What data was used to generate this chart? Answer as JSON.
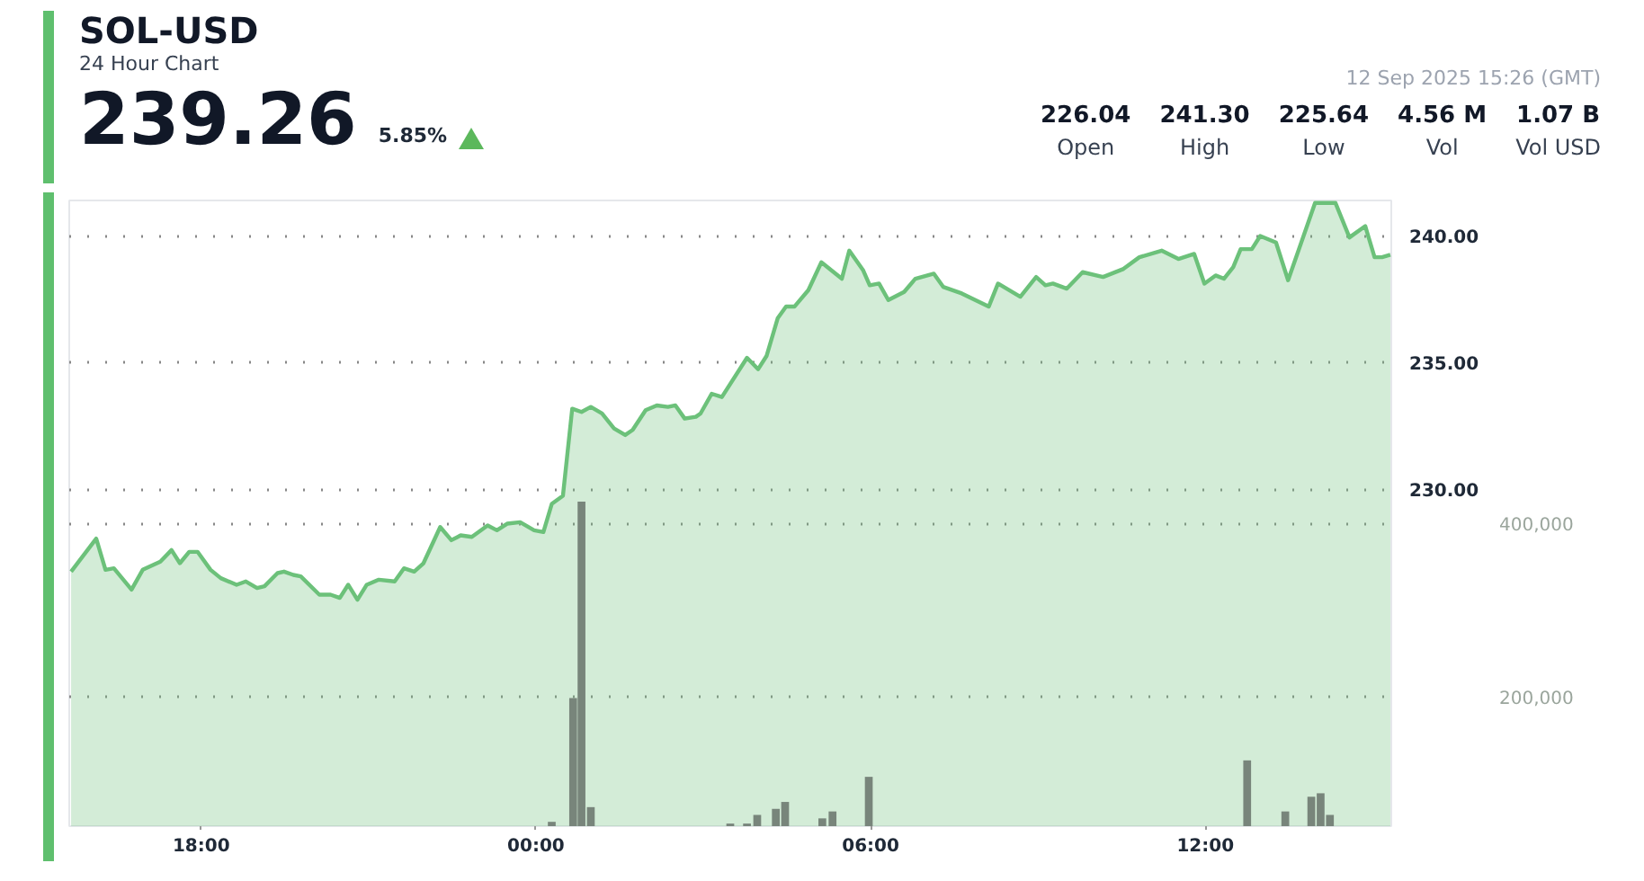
{
  "chart_data": {
    "type": "area",
    "title": "SOL-USD",
    "subtitle": "24 Hour Chart",
    "annotations": [
      "239.26",
      "5.85%",
      "12 Sep 2025 15:26 (GMT)",
      "226.04",
      "Open",
      "241.30",
      "High",
      "225.64",
      "Low",
      "4.56 M",
      "Vol",
      "1.07 B",
      "Vol USD"
    ],
    "xlim": [
      "2025-09-11T15:38",
      "2025-09-12T15:20"
    ],
    "xticks": [
      {
        "value": "2025-09-11T18:00",
        "label": "18:00"
      },
      {
        "value": "2025-09-12T00:00",
        "label": "00:00"
      },
      {
        "value": "2025-09-12T06:00",
        "label": "06:00"
      },
      {
        "value": "2025-09-12T12:00",
        "label": "12:00"
      }
    ],
    "ylim": [
      216.7,
      241.4
    ],
    "yticks": [
      {
        "value": 230,
        "label": "230.00"
      },
      {
        "value": 235,
        "label": "235.00"
      },
      {
        "value": 240,
        "label": "240.00"
      }
    ],
    "y2lim": [
      50000,
      773000
    ],
    "y2ticks": [
      {
        "value": 200000,
        "label": "200,000"
      },
      {
        "value": 400000,
        "label": "400,000"
      }
    ],
    "grid": "y",
    "series": [
      {
        "color": "#6cc17a",
        "x": [
          "2025-09-11T15:40",
          "2025-09-11T16:07",
          "2025-09-11T16:17",
          "2025-09-11T16:26",
          "2025-09-11T16:45",
          "2025-09-11T16:57",
          "2025-09-11T17:16",
          "2025-09-11T17:28",
          "2025-09-11T17:37",
          "2025-09-11T17:47",
          "2025-09-11T17:56",
          "2025-09-11T18:10",
          "2025-09-11T18:21",
          "2025-09-11T18:38",
          "2025-09-11T18:48",
          "2025-09-11T19:00",
          "2025-09-11T19:08",
          "2025-09-11T19:22",
          "2025-09-11T19:29",
          "2025-09-11T19:39",
          "2025-09-11T19:47",
          "2025-09-11T20:07",
          "2025-09-11T20:19",
          "2025-09-11T20:29",
          "2025-09-11T20:38",
          "2025-09-11T20:48",
          "2025-09-11T20:58",
          "2025-09-11T21:11",
          "2025-09-11T21:28",
          "2025-09-11T21:38",
          "2025-09-11T21:49",
          "2025-09-11T21:59",
          "2025-09-11T22:17",
          "2025-09-11T22:29",
          "2025-09-11T22:39",
          "2025-09-11T22:51",
          "2025-09-11T23:08",
          "2025-09-11T23:18",
          "2025-09-11T23:29",
          "2025-09-11T23:43",
          "2025-09-11T23:58",
          "2025-09-12T00:08",
          "2025-09-12T00:17",
          "2025-09-12T00:29",
          "2025-09-12T00:39",
          "2025-09-12T00:49",
          "2025-09-12T00:59",
          "2025-09-12T01:11",
          "2025-09-12T01:24",
          "2025-09-12T01:36",
          "2025-09-12T01:44",
          "2025-09-12T01:58",
          "2025-09-12T02:10",
          "2025-09-12T02:22",
          "2025-09-12T02:30",
          "2025-09-12T02:40",
          "2025-09-12T02:52",
          "2025-09-12T02:57",
          "2025-09-12T03:09",
          "2025-09-12T03:20",
          "2025-09-12T03:47",
          "2025-09-12T03:59",
          "2025-09-12T04:08",
          "2025-09-12T04:20",
          "2025-09-12T04:29",
          "2025-09-12T04:38",
          "2025-09-12T04:53",
          "2025-09-12T05:07",
          "2025-09-12T05:29",
          "2025-09-12T05:37",
          "2025-09-12T05:52",
          "2025-09-12T05:59",
          "2025-09-12T06:09",
          "2025-09-12T06:19",
          "2025-09-12T06:36",
          "2025-09-12T06:48",
          "2025-09-12T07:08",
          "2025-09-12T07:18",
          "2025-09-12T07:38",
          "2025-09-12T08:07",
          "2025-09-12T08:17",
          "2025-09-12T08:41",
          "2025-09-12T08:58",
          "2025-09-12T09:08",
          "2025-09-12T09:16",
          "2025-09-12T09:31",
          "2025-09-12T09:48",
          "2025-09-12T10:10",
          "2025-09-12T10:32",
          "2025-09-12T10:49",
          "2025-09-12T11:13",
          "2025-09-12T11:31",
          "2025-09-12T11:48",
          "2025-09-12T11:59",
          "2025-09-12T12:11",
          "2025-09-12T12:20",
          "2025-09-12T12:30",
          "2025-09-12T12:38",
          "2025-09-12T12:50",
          "2025-09-12T12:59",
          "2025-09-12T13:16",
          "2025-09-12T13:29",
          "2025-09-12T13:58",
          "2025-09-12T14:20",
          "2025-09-12T14:35",
          "2025-09-12T14:52",
          "2025-09-12T15:02",
          "2025-09-12T15:10",
          "2025-09-12T15:19"
        ],
        "values": [
          226.75,
          228.05,
          226.82,
          226.88,
          226.04,
          226.82,
          227.14,
          227.6,
          227.08,
          227.53,
          227.53,
          226.82,
          226.49,
          226.23,
          226.36,
          226.1,
          226.17,
          226.69,
          226.75,
          226.62,
          226.56,
          225.84,
          225.84,
          225.71,
          226.23,
          225.64,
          226.23,
          226.43,
          226.36,
          226.88,
          226.75,
          227.08,
          228.51,
          227.99,
          228.18,
          228.12,
          228.57,
          228.38,
          228.64,
          228.7,
          228.38,
          228.31,
          229.42,
          229.74,
          233.18,
          233.05,
          233.25,
          232.99,
          232.4,
          232.14,
          232.34,
          233.12,
          233.31,
          233.25,
          233.31,
          232.79,
          232.86,
          232.99,
          233.77,
          233.64,
          235.19,
          234.74,
          235.26,
          236.75,
          237.21,
          237.21,
          237.86,
          238.96,
          238.31,
          239.42,
          238.64,
          238.05,
          238.12,
          237.47,
          237.79,
          238.31,
          238.51,
          237.99,
          237.73,
          237.21,
          238.12,
          237.6,
          238.38,
          238.05,
          238.12,
          237.92,
          238.57,
          238.38,
          238.7,
          239.16,
          239.42,
          239.09,
          239.29,
          238.12,
          238.44,
          238.31,
          238.77,
          239.48,
          239.48,
          240.0,
          239.74,
          238.25,
          241.3,
          241.3,
          239.94,
          240.39,
          239.16,
          239.16,
          239.26
        ]
      },
      {
        "type": "bar",
        "axis": "y2",
        "color": "#78857b",
        "x": [
          "2025-09-12T00:17",
          "2025-09-12T00:40",
          "2025-09-12T00:49",
          "2025-09-12T00:59",
          "2025-09-12T03:29",
          "2025-09-12T03:47",
          "2025-09-12T03:58",
          "2025-09-12T04:18",
          "2025-09-12T04:28",
          "2025-09-12T05:08",
          "2025-09-12T05:19",
          "2025-09-12T05:58",
          "2025-09-12T12:45",
          "2025-09-12T13:26",
          "2025-09-12T13:54",
          "2025-09-12T14:04",
          "2025-09-12T14:14"
        ],
        "values": [
          55000,
          198000,
          425000,
          72000,
          53000,
          53000,
          63000,
          70000,
          78000,
          59000,
          67000,
          107000,
          126000,
          67000,
          84000,
          88000,
          63000
        ]
      }
    ]
  }
}
